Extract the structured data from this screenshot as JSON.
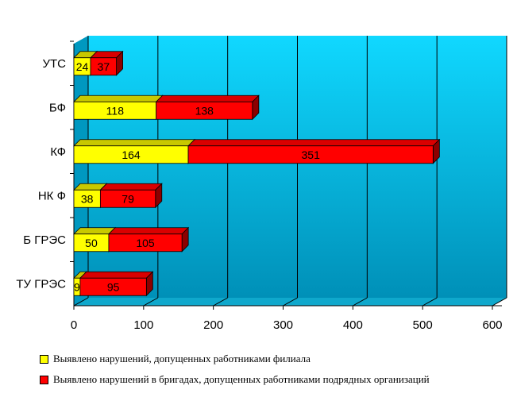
{
  "chart_data": {
    "type": "bar",
    "orientation": "horizontal",
    "stacked": true,
    "categories": [
      "УТС",
      "БФ",
      "КФ",
      "НК Ф",
      "Б ГРЭС",
      "ТУ ГРЭС"
    ],
    "series": [
      {
        "name": "Выявлено нарушений, допущенных работниками филиала",
        "values": [
          24,
          118,
          164,
          38,
          50,
          9
        ],
        "color": "#ffff00"
      },
      {
        "name": "Выявлено нарушений в бригадах, допущенных работниками подрядных организаций",
        "values": [
          37,
          138,
          351,
          79,
          105,
          95
        ],
        "color": "#ff0000"
      }
    ],
    "xlim": [
      0,
      600
    ],
    "xticks": [
      0,
      100,
      200,
      300,
      400,
      500,
      600
    ],
    "grid": true,
    "legend": "bottom",
    "background": "#00c8f0",
    "title": "",
    "xlabel": "",
    "ylabel": ""
  }
}
